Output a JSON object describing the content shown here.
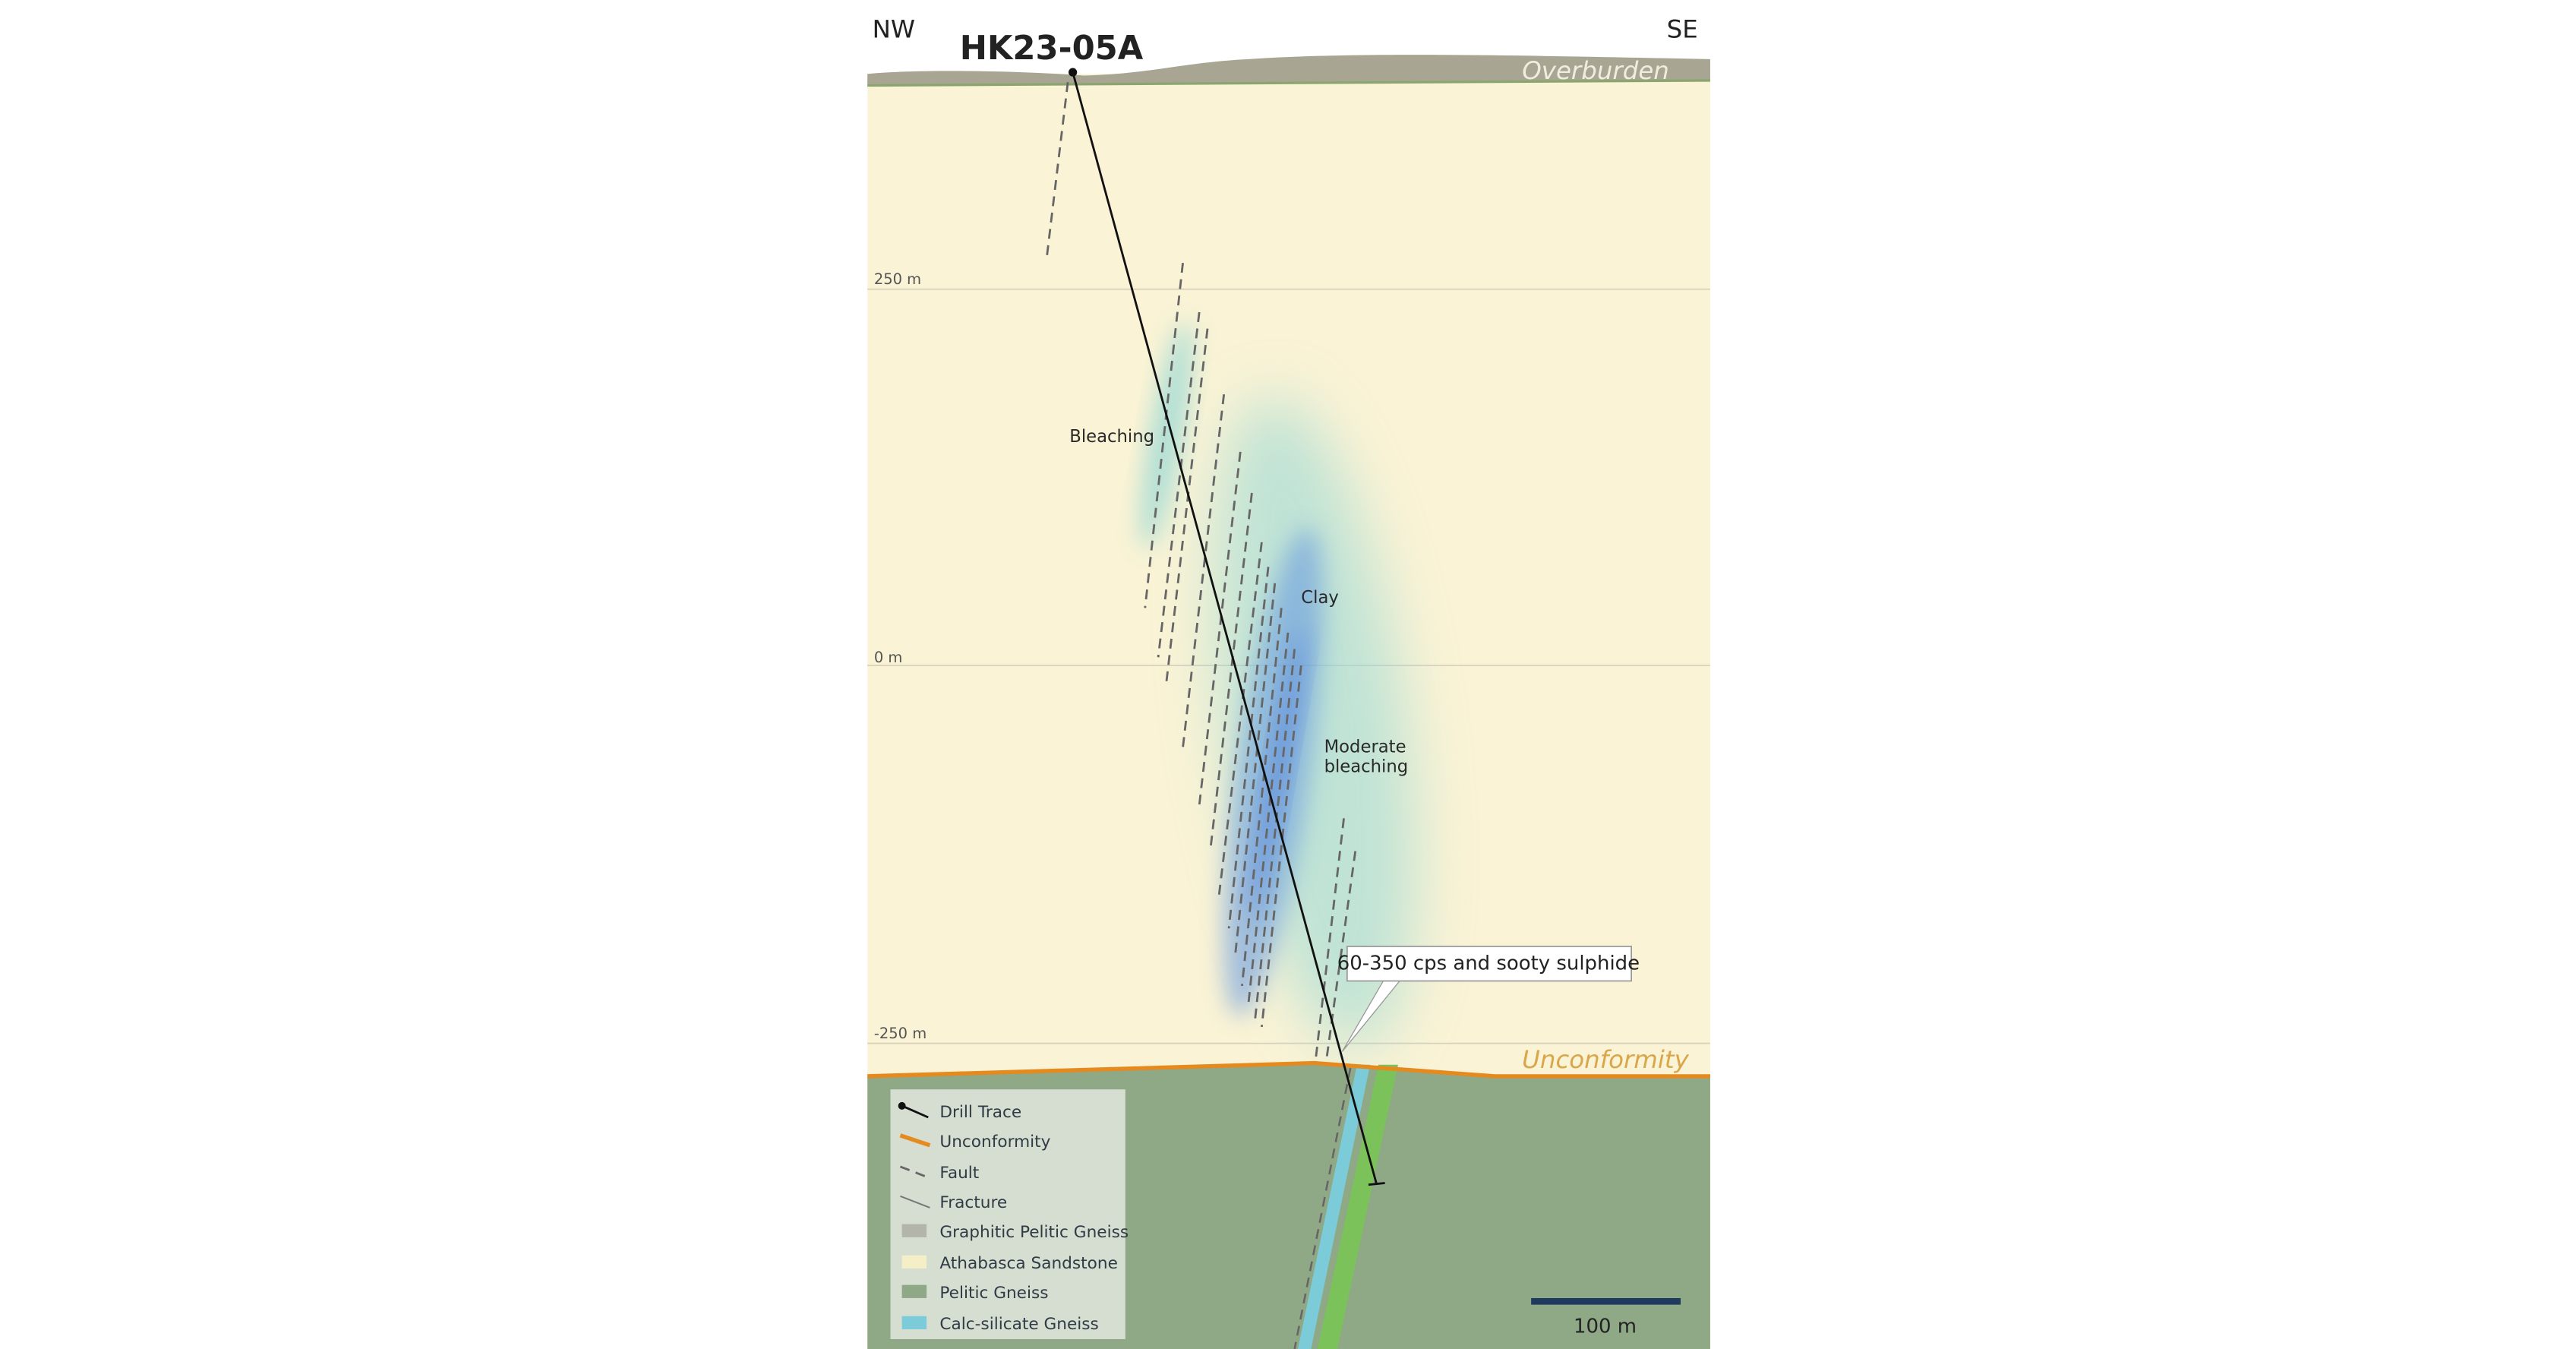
{
  "section": {
    "hole_id": "HK23-05A",
    "direction_left": "NW",
    "direction_right": "SE",
    "layer_labels": {
      "overburden": "Overburden",
      "unconformity": "Unconformity"
    },
    "elevation_labels": [
      "250 m",
      "0 m",
      "-250 m"
    ],
    "annotations": {
      "bleaching": "Bleaching",
      "clay": "Clay",
      "moderate_bleaching": [
        "Moderate",
        "bleaching"
      ]
    },
    "callout": "60-350 cps and sooty sulphide",
    "scale_bar": "100 m"
  },
  "legend": {
    "items": [
      "Drill Trace",
      "Unconformity",
      "Fault",
      "Fracture",
      "Graphitic Pelitic Gneiss",
      "Athabasca Sandstone",
      "Pelitic Gneiss",
      "Calc-silicate Gneiss"
    ]
  }
}
